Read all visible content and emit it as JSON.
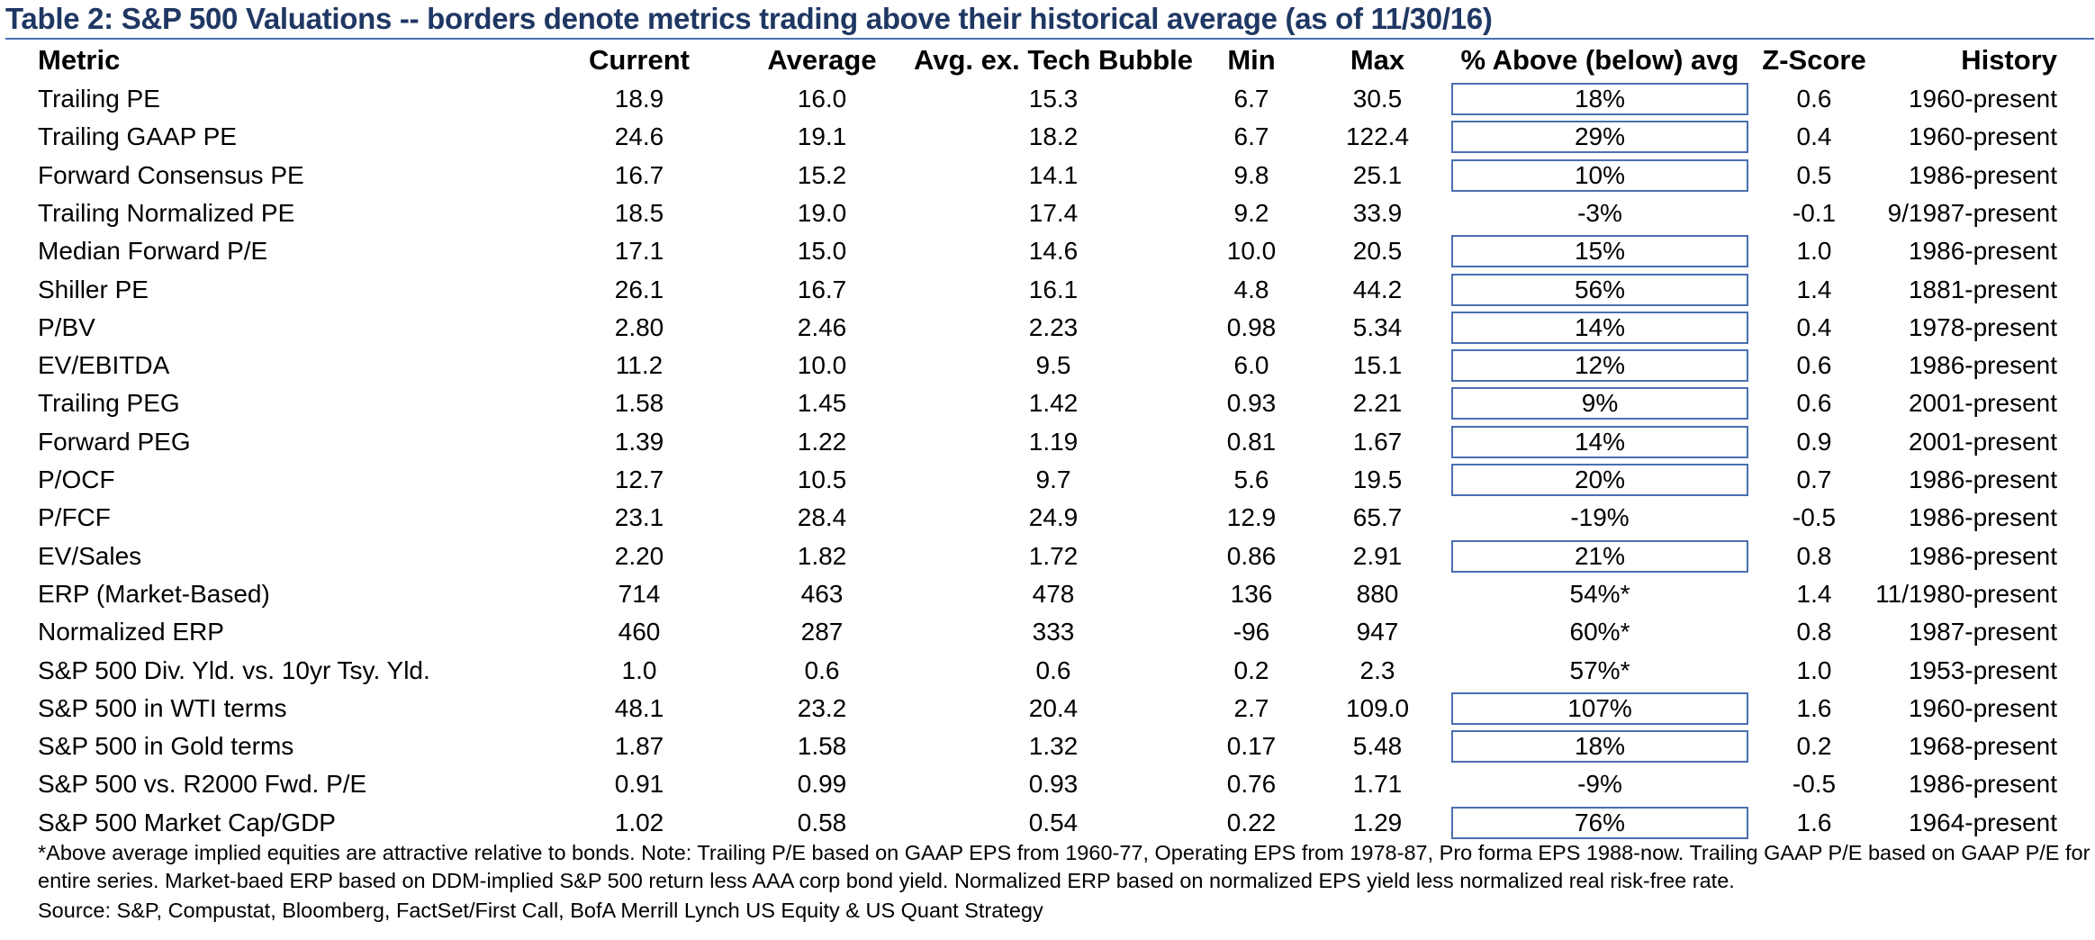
{
  "title": "Table 2: S&P 500 Valuations -- borders denote metrics trading above their historical average (as of 11/30/16)",
  "columns": [
    "Metric",
    "Current",
    "Average",
    "Avg. ex. Tech Bubble",
    "Min",
    "Max",
    "% Above (below) avg",
    "Z-Score",
    "History"
  ],
  "rows": [
    {
      "metric": "Trailing PE",
      "current": "18.9",
      "average": "16.0",
      "avg_ex": "15.3",
      "min": "6.7",
      "max": "30.5",
      "pct": "18%",
      "z": "0.6",
      "history": "1960-present",
      "boxed": true
    },
    {
      "metric": "Trailing GAAP PE",
      "current": "24.6",
      "average": "19.1",
      "avg_ex": "18.2",
      "min": "6.7",
      "max": "122.4",
      "pct": "29%",
      "z": "0.4",
      "history": "1960-present",
      "boxed": true
    },
    {
      "metric": "Forward Consensus PE",
      "current": "16.7",
      "average": "15.2",
      "avg_ex": "14.1",
      "min": "9.8",
      "max": "25.1",
      "pct": "10%",
      "z": "0.5",
      "history": "1986-present",
      "boxed": true
    },
    {
      "metric": "Trailing Normalized PE",
      "current": "18.5",
      "average": "19.0",
      "avg_ex": "17.4",
      "min": "9.2",
      "max": "33.9",
      "pct": "-3%",
      "z": "-0.1",
      "history": "9/1987-present",
      "boxed": false
    },
    {
      "metric": "Median Forward P/E",
      "current": "17.1",
      "average": "15.0",
      "avg_ex": "14.6",
      "min": "10.0",
      "max": "20.5",
      "pct": "15%",
      "z": "1.0",
      "history": "1986-present",
      "boxed": true
    },
    {
      "metric": "Shiller PE",
      "current": "26.1",
      "average": "16.7",
      "avg_ex": "16.1",
      "min": "4.8",
      "max": "44.2",
      "pct": "56%",
      "z": "1.4",
      "history": "1881-present",
      "boxed": true
    },
    {
      "metric": "P/BV",
      "current": "2.80",
      "average": "2.46",
      "avg_ex": "2.23",
      "min": "0.98",
      "max": "5.34",
      "pct": "14%",
      "z": "0.4",
      "history": "1978-present",
      "boxed": true
    },
    {
      "metric": "EV/EBITDA",
      "current": "11.2",
      "average": "10.0",
      "avg_ex": "9.5",
      "min": "6.0",
      "max": "15.1",
      "pct": "12%",
      "z": "0.6",
      "history": "1986-present",
      "boxed": true
    },
    {
      "metric": "Trailing PEG",
      "current": "1.58",
      "average": "1.45",
      "avg_ex": "1.42",
      "min": "0.93",
      "max": "2.21",
      "pct": "9%",
      "z": "0.6",
      "history": "2001-present",
      "boxed": true
    },
    {
      "metric": "Forward PEG",
      "current": "1.39",
      "average": "1.22",
      "avg_ex": "1.19",
      "min": "0.81",
      "max": "1.67",
      "pct": "14%",
      "z": "0.9",
      "history": "2001-present",
      "boxed": true
    },
    {
      "metric": "P/OCF",
      "current": "12.7",
      "average": "10.5",
      "avg_ex": "9.7",
      "min": "5.6",
      "max": "19.5",
      "pct": "20%",
      "z": "0.7",
      "history": "1986-present",
      "boxed": true
    },
    {
      "metric": "P/FCF",
      "current": "23.1",
      "average": "28.4",
      "avg_ex": "24.9",
      "min": "12.9",
      "max": "65.7",
      "pct": "-19%",
      "z": "-0.5",
      "history": "1986-present",
      "boxed": false
    },
    {
      "metric": "EV/Sales",
      "current": "2.20",
      "average": "1.82",
      "avg_ex": "1.72",
      "min": "0.86",
      "max": "2.91",
      "pct": "21%",
      "z": "0.8",
      "history": "1986-present",
      "boxed": true
    },
    {
      "metric": "ERP (Market-Based)",
      "current": "714",
      "average": "463",
      "avg_ex": "478",
      "min": "136",
      "max": "880",
      "pct": "54%*",
      "z": "1.4",
      "history": "11/1980-present",
      "boxed": false
    },
    {
      "metric": "Normalized ERP",
      "current": "460",
      "average": "287",
      "avg_ex": "333",
      "min": "-96",
      "max": "947",
      "pct": "60%*",
      "z": "0.8",
      "history": "1987-present",
      "boxed": false
    },
    {
      "metric": "S&P 500 Div. Yld. vs. 10yr Tsy. Yld.",
      "current": "1.0",
      "average": "0.6",
      "avg_ex": "0.6",
      "min": "0.2",
      "max": "2.3",
      "pct": "57%*",
      "z": "1.0",
      "history": "1953-present",
      "boxed": false
    },
    {
      "metric": "S&P 500 in WTI terms",
      "current": "48.1",
      "average": "23.2",
      "avg_ex": "20.4",
      "min": "2.7",
      "max": "109.0",
      "pct": "107%",
      "z": "1.6",
      "history": "1960-present",
      "boxed": true
    },
    {
      "metric": "S&P 500 in Gold terms",
      "current": "1.87",
      "average": "1.58",
      "avg_ex": "1.32",
      "min": "0.17",
      "max": "5.48",
      "pct": "18%",
      "z": "0.2",
      "history": "1968-present",
      "boxed": true
    },
    {
      "metric": "S&P 500 vs. R2000 Fwd. P/E",
      "current": "0.91",
      "average": "0.99",
      "avg_ex": "0.93",
      "min": "0.76",
      "max": "1.71",
      "pct": "-9%",
      "z": "-0.5",
      "history": "1986-present",
      "boxed": false
    },
    {
      "metric": "S&P 500 Market Cap/GDP",
      "current": "1.02",
      "average": "0.58",
      "avg_ex": "0.54",
      "min": "0.22",
      "max": "1.29",
      "pct": "76%",
      "z": "1.6",
      "history": "1964-present",
      "boxed": true
    }
  ],
  "footnotes": [
    "*Above  average implied equities are attractive relative to bonds.  Note: Trailing P/E based on GAAP EPS from 1960-77, Operating EPS from 1978-87, Pro forma EPS 1988-now. Trailing GAAP P/E based on GAAP P/E for",
    "entire series. Market-baed ERP based on DDM-implied S&P 500 return less AAA corp bond yield. Normalized ERP based on normalized EPS yield less normalized real risk-free rate.",
    "Source: S&P, Compustat, Bloomberg, FactSet/First Call, BofA Merrill Lynch US Equity & US Quant Strategy"
  ],
  "colors": {
    "title": "#1f3763",
    "border": "#4a6fb0"
  }
}
